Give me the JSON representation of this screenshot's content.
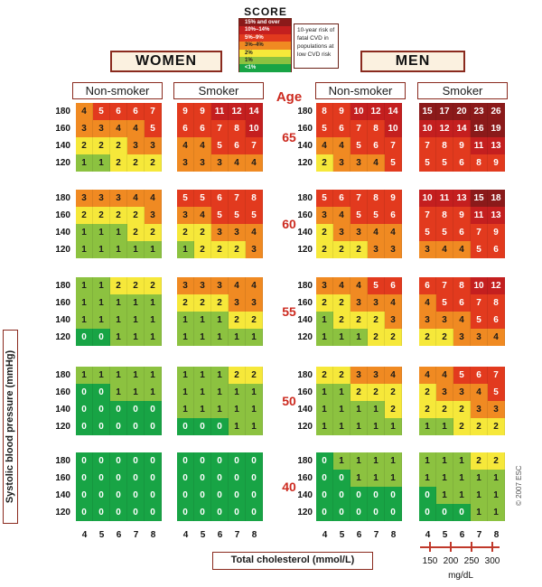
{
  "chart_data": {
    "type": "heatmap",
    "title": "SCORE",
    "legend": {
      "categories": [
        {
          "label": "15% and over",
          "color": "#8b1a1a"
        },
        {
          "label": "10%–14%",
          "color": "#c41f1f"
        },
        {
          "label": "5%–9%",
          "color": "#e23a1e"
        },
        {
          "label": "3%–4%",
          "color": "#f08a22"
        },
        {
          "label": "2%",
          "color": "#f6e83a"
        },
        {
          "label": "1%",
          "color": "#8cc240"
        },
        {
          "label": "<1%",
          "color": "#18a445"
        }
      ],
      "note": "10-year risk of fatal CVD in populations at low CVD risk"
    },
    "sexes": [
      "WOMEN",
      "MEN"
    ],
    "smoking": [
      "Non-smoker",
      "Smoker"
    ],
    "age_title": "Age",
    "ages": [
      "65",
      "60",
      "55",
      "50",
      "40"
    ],
    "sbp": [
      "180",
      "160",
      "140",
      "120"
    ],
    "cholesterol": [
      "4",
      "5",
      "6",
      "7",
      "8"
    ],
    "ylabel": "Systolic blood pressure (mmHg)",
    "xlabel": "Total cholesterol (mmol/L)",
    "mgdl_ticks": [
      "150",
      "200",
      "250",
      "300"
    ],
    "mgdl_unit": "mg/dL",
    "copyright": "© 2007 ESC",
    "values": {
      "women_non": [
        [
          [
            4,
            5,
            6,
            6,
            7
          ],
          [
            3,
            3,
            4,
            4,
            5
          ],
          [
            2,
            2,
            2,
            3,
            3
          ],
          [
            1,
            1,
            2,
            2,
            2
          ]
        ],
        [
          [
            3,
            3,
            3,
            4,
            4
          ],
          [
            2,
            2,
            2,
            2,
            3
          ],
          [
            1,
            1,
            1,
            2,
            2
          ],
          [
            1,
            1,
            1,
            1,
            1
          ]
        ],
        [
          [
            1,
            1,
            2,
            2,
            2
          ],
          [
            1,
            1,
            1,
            1,
            1
          ],
          [
            1,
            1,
            1,
            1,
            1
          ],
          [
            0,
            0,
            1,
            1,
            1
          ]
        ],
        [
          [
            1,
            1,
            1,
            1,
            1
          ],
          [
            0,
            0,
            1,
            1,
            1
          ],
          [
            0,
            0,
            0,
            0,
            0
          ],
          [
            0,
            0,
            0,
            0,
            0
          ]
        ],
        [
          [
            0,
            0,
            0,
            0,
            0
          ],
          [
            0,
            0,
            0,
            0,
            0
          ],
          [
            0,
            0,
            0,
            0,
            0
          ],
          [
            0,
            0,
            0,
            0,
            0
          ]
        ]
      ],
      "women_smk": [
        [
          [
            9,
            9,
            11,
            12,
            14
          ],
          [
            6,
            6,
            7,
            8,
            10
          ],
          [
            4,
            4,
            5,
            6,
            7
          ],
          [
            3,
            3,
            3,
            4,
            4
          ]
        ],
        [
          [
            5,
            5,
            6,
            7,
            8
          ],
          [
            3,
            4,
            5,
            5,
            5
          ],
          [
            2,
            2,
            3,
            3,
            4
          ],
          [
            1,
            2,
            2,
            2,
            3
          ]
        ],
        [
          [
            3,
            3,
            3,
            4,
            4
          ],
          [
            2,
            2,
            2,
            3,
            3
          ],
          [
            1,
            1,
            1,
            2,
            2
          ],
          [
            1,
            1,
            1,
            1,
            1
          ]
        ],
        [
          [
            1,
            1,
            1,
            2,
            2
          ],
          [
            1,
            1,
            1,
            1,
            1
          ],
          [
            1,
            1,
            1,
            1,
            1
          ],
          [
            0,
            0,
            0,
            1,
            1
          ]
        ],
        [
          [
            0,
            0,
            0,
            0,
            0
          ],
          [
            0,
            0,
            0,
            0,
            0
          ],
          [
            0,
            0,
            0,
            0,
            0
          ],
          [
            0,
            0,
            0,
            0,
            0
          ]
        ]
      ],
      "men_non": [
        [
          [
            8,
            9,
            10,
            12,
            14
          ],
          [
            5,
            6,
            7,
            8,
            10
          ],
          [
            4,
            4,
            5,
            6,
            7
          ],
          [
            2,
            3,
            3,
            4,
            5
          ]
        ],
        [
          [
            5,
            6,
            7,
            8,
            9
          ],
          [
            3,
            4,
            5,
            5,
            6
          ],
          [
            2,
            3,
            3,
            4,
            4
          ],
          [
            2,
            2,
            2,
            3,
            3
          ]
        ],
        [
          [
            3,
            4,
            4,
            5,
            6
          ],
          [
            2,
            2,
            3,
            3,
            4
          ],
          [
            1,
            2,
            2,
            2,
            3
          ],
          [
            1,
            1,
            1,
            2,
            2
          ]
        ],
        [
          [
            2,
            2,
            3,
            3,
            4
          ],
          [
            1,
            1,
            2,
            2,
            2
          ],
          [
            1,
            1,
            1,
            1,
            2
          ],
          [
            1,
            1,
            1,
            1,
            1
          ]
        ],
        [
          [
            0,
            1,
            1,
            1,
            1
          ],
          [
            0,
            0,
            1,
            1,
            1
          ],
          [
            0,
            0,
            0,
            0,
            0
          ],
          [
            0,
            0,
            0,
            0,
            0
          ]
        ]
      ],
      "men_smk": [
        [
          [
            15,
            17,
            20,
            23,
            26
          ],
          [
            10,
            12,
            14,
            16,
            19
          ],
          [
            7,
            8,
            9,
            11,
            13
          ],
          [
            5,
            5,
            6,
            8,
            9
          ]
        ],
        [
          [
            10,
            11,
            13,
            15,
            18
          ],
          [
            7,
            8,
            9,
            11,
            13
          ],
          [
            5,
            5,
            6,
            7,
            9
          ],
          [
            3,
            4,
            4,
            5,
            6
          ]
        ],
        [
          [
            6,
            7,
            8,
            10,
            12
          ],
          [
            4,
            5,
            6,
            7,
            8
          ],
          [
            3,
            3,
            4,
            5,
            6
          ],
          [
            2,
            2,
            3,
            3,
            4
          ]
        ],
        [
          [
            4,
            4,
            5,
            6,
            7
          ],
          [
            2,
            3,
            3,
            4,
            5
          ],
          [
            2,
            2,
            2,
            3,
            3
          ],
          [
            1,
            1,
            2,
            2,
            2
          ]
        ],
        [
          [
            1,
            1,
            1,
            2,
            2
          ],
          [
            1,
            1,
            1,
            1,
            1
          ],
          [
            0,
            1,
            1,
            1,
            1
          ],
          [
            0,
            0,
            0,
            1,
            1
          ]
        ]
      ]
    }
  }
}
